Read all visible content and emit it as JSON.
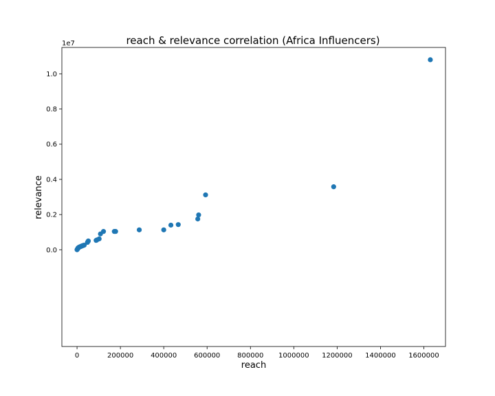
{
  "chart_data": {
    "type": "scatter",
    "title": "reach & relevance correlation (Africa Influencers)",
    "xlabel": "reach",
    "ylabel": "relevance",
    "y_offset_text": "1e7",
    "xlim": [
      -70000,
      1700000
    ],
    "ylim": [
      -5500000,
      11500000
    ],
    "xticks": [
      0,
      200000,
      400000,
      600000,
      800000,
      1000000,
      1200000,
      1400000,
      1600000
    ],
    "xtick_labels": [
      "0",
      "200000",
      "400000",
      "600000",
      "800000",
      "1000000",
      "1200000",
      "1400000",
      "1600000"
    ],
    "yticks": [
      0,
      2000000,
      4000000,
      6000000,
      8000000,
      10000000
    ],
    "ytick_labels": [
      "0.0",
      "0.2",
      "0.4",
      "0.6",
      "0.8",
      "1.0"
    ],
    "grid": false,
    "color": "#1f77b4",
    "points": [
      {
        "x": 0,
        "y": 0
      },
      {
        "x": 500,
        "y": 10000
      },
      {
        "x": 1000,
        "y": 20000
      },
      {
        "x": 2000,
        "y": 40000
      },
      {
        "x": 3000,
        "y": 60000
      },
      {
        "x": 4000,
        "y": 80000
      },
      {
        "x": 5000,
        "y": 100000
      },
      {
        "x": 6000,
        "y": 110000
      },
      {
        "x": 7000,
        "y": 120000
      },
      {
        "x": 8000,
        "y": 130000
      },
      {
        "x": 9000,
        "y": 140000
      },
      {
        "x": 10000,
        "y": 150000
      },
      {
        "x": 12000,
        "y": 160000
      },
      {
        "x": 14000,
        "y": 170000
      },
      {
        "x": 16000,
        "y": 180000
      },
      {
        "x": 18000,
        "y": 190000
      },
      {
        "x": 20000,
        "y": 200000
      },
      {
        "x": 22000,
        "y": 210000
      },
      {
        "x": 24000,
        "y": 220000
      },
      {
        "x": 26000,
        "y": 230000
      },
      {
        "x": 28000,
        "y": 240000
      },
      {
        "x": 30000,
        "y": 250000
      },
      {
        "x": 33000,
        "y": 260000
      },
      {
        "x": 48000,
        "y": 420000
      },
      {
        "x": 50000,
        "y": 460000
      },
      {
        "x": 52000,
        "y": 500000
      },
      {
        "x": 88000,
        "y": 530000
      },
      {
        "x": 92000,
        "y": 560000
      },
      {
        "x": 102000,
        "y": 620000
      },
      {
        "x": 108000,
        "y": 900000
      },
      {
        "x": 122000,
        "y": 1040000
      },
      {
        "x": 172000,
        "y": 1040000
      },
      {
        "x": 178000,
        "y": 1040000
      },
      {
        "x": 287000,
        "y": 1130000
      },
      {
        "x": 400000,
        "y": 1130000
      },
      {
        "x": 433000,
        "y": 1400000
      },
      {
        "x": 467000,
        "y": 1430000
      },
      {
        "x": 557000,
        "y": 1750000
      },
      {
        "x": 561000,
        "y": 1980000
      },
      {
        "x": 593000,
        "y": 3120000
      },
      {
        "x": 1184000,
        "y": 3580000
      },
      {
        "x": 1630000,
        "y": 10800000
      }
    ]
  }
}
